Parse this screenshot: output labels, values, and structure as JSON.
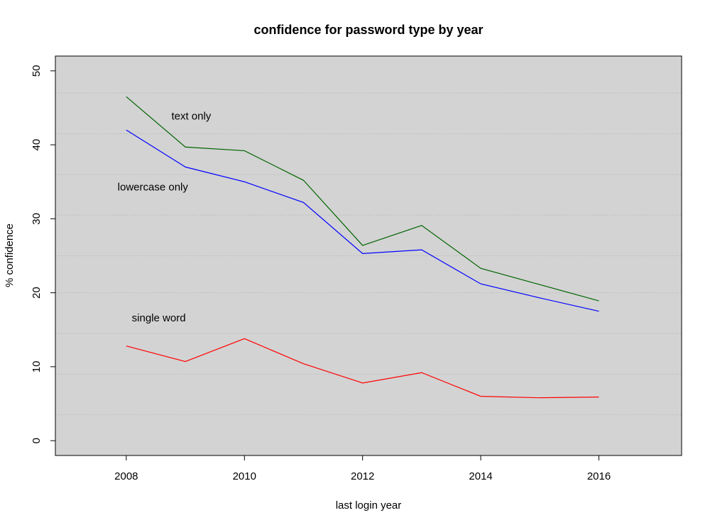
{
  "chart_data": {
    "type": "line",
    "title": "confidence for password type by year",
    "xlabel": "last login year",
    "ylabel": "% confidence",
    "xlim": [
      2006.8,
      2017.4
    ],
    "ylim": [
      -2,
      52
    ],
    "x_ticks": [
      2008,
      2010,
      2012,
      2014,
      2016
    ],
    "y_ticks": [
      0,
      10,
      20,
      30,
      40,
      50
    ],
    "grid_y": [
      3.5,
      9,
      14.5,
      20,
      25,
      30.5,
      36,
      41.5,
      47
    ],
    "background": "#d3d3d3",
    "x": [
      2008,
      2009,
      2010,
      2011,
      2012,
      2013,
      2014,
      2015,
      2016
    ],
    "series": [
      {
        "color": "#006400",
        "values": [
          46.5,
          39.7,
          39.2,
          35.2,
          26.4,
          29.1,
          23.3,
          21.1,
          18.9
        ]
      },
      {
        "color": "#0000ff",
        "values": [
          42.0,
          37.0,
          35.0,
          32.2,
          25.3,
          25.8,
          21.2,
          19.3,
          17.5
        ]
      },
      {
        "color": "#ff0000",
        "values": [
          12.8,
          10.7,
          13.8,
          10.4,
          7.8,
          9.2,
          6.0,
          5.8,
          5.9
        ]
      }
    ],
    "annotations": [
      {
        "text": "text only",
        "x": 2009.1,
        "y": 43.8
      },
      {
        "text": "lowercase only",
        "x": 2008.45,
        "y": 34.2
      },
      {
        "text": "single word",
        "x": 2008.55,
        "y": 16.5
      }
    ]
  }
}
